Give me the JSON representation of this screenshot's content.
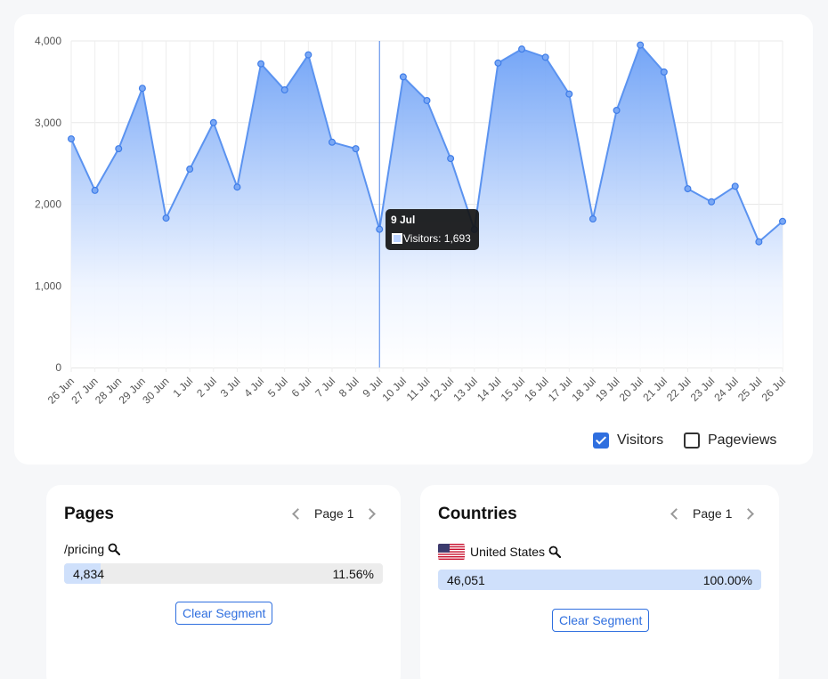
{
  "chart_data": {
    "type": "area",
    "categories": [
      "26 Jun",
      "27 Jun",
      "28 Jun",
      "29 Jun",
      "30 Jun",
      "1 Jul",
      "2 Jul",
      "3 Jul",
      "4 Jul",
      "5 Jul",
      "6 Jul",
      "7 Jul",
      "8 Jul",
      "9 Jul",
      "10 Jul",
      "11 Jul",
      "12 Jul",
      "13 Jul",
      "14 Jul",
      "15 Jul",
      "16 Jul",
      "17 Jul",
      "18 Jul",
      "19 Jul",
      "20 Jul",
      "21 Jul",
      "22 Jul",
      "23 Jul",
      "24 Jul",
      "25 Jul",
      "26 Jul"
    ],
    "series": [
      {
        "name": "Visitors",
        "values": [
          2800,
          2170,
          2680,
          3420,
          1830,
          2430,
          3000,
          2210,
          3720,
          3400,
          3830,
          2760,
          2680,
          1693,
          3560,
          3270,
          2560,
          1690,
          3730,
          3900,
          3800,
          3350,
          1820,
          3150,
          3950,
          3620,
          2190,
          2030,
          2220,
          1540,
          1790
        ]
      }
    ],
    "yticks": [
      "0",
      "1,000",
      "2,000",
      "3,000",
      "4,000"
    ],
    "ylim": [
      0,
      4000
    ],
    "grid": true,
    "tooltip": {
      "title": "9 Jul",
      "body": "Visitors: 1,693"
    },
    "colors": {
      "line": "#5b93f0",
      "fill_top": "#6ca0f6",
      "fill_bottom": "#ffffff",
      "crosshair": "#4d85ea"
    }
  },
  "legend": {
    "visitors": {
      "label": "Visitors",
      "checked": true
    },
    "pageviews": {
      "label": "Pageviews",
      "checked": false
    }
  },
  "pages_panel": {
    "title": "Pages",
    "page_label": "Page 1",
    "item": "/pricing",
    "count": "4,834",
    "percent": "11.56%",
    "fraction": 0.1156,
    "button": "Clear Segment"
  },
  "countries_panel": {
    "title": "Countries",
    "page_label": "Page 1",
    "item": "United States",
    "count": "46,051",
    "percent": "100.00%",
    "fraction": 1.0,
    "button": "Clear Segment"
  },
  "icons": {
    "search": "magnifier-icon",
    "flag": "us-flag-icon",
    "prev": "chevron-left-icon",
    "next": "chevron-right-icon"
  }
}
